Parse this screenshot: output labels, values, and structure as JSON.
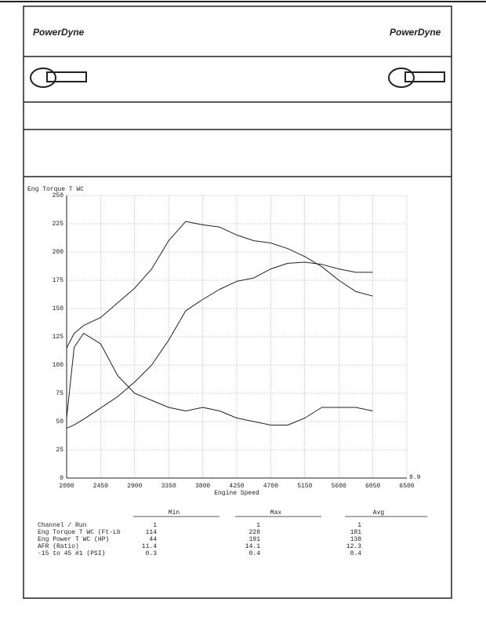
{
  "header": {
    "logo": "PowerDyne"
  },
  "chart_data": {
    "type": "line",
    "title": "Eng Torque T WC",
    "x_label": "Engine Speed",
    "x": [
      2000,
      2100,
      2225,
      2450,
      2675,
      2900,
      3125,
      3350,
      3575,
      3800,
      4025,
      4250,
      4475,
      4700,
      4925,
      5150,
      5375,
      5600,
      5825,
      6050
    ],
    "series": [
      {
        "name": "Eng Torque T WC",
        "color": "#222",
        "values": [
          115,
          128,
          135,
          142,
          155,
          168,
          185,
          210,
          227,
          224,
          222,
          215,
          210,
          208,
          203,
          196,
          187,
          175,
          165,
          161
        ]
      },
      {
        "name": "Eng Power T WC",
        "color": "#222",
        "values": [
          44,
          47,
          52,
          62,
          72,
          85,
          100,
          122,
          148,
          158,
          167,
          174,
          177,
          185,
          190,
          191,
          189,
          185,
          182,
          182
        ]
      },
      {
        "name": "AFR",
        "color": "#222",
        "axis": "y2",
        "values": [
          11.6,
          13.6,
          14.0,
          13.7,
          12.8,
          12.3,
          12.1,
          11.9,
          11.8,
          11.9,
          11.8,
          11.6,
          11.5,
          11.4,
          11.4,
          11.6,
          11.9,
          11.9,
          11.9,
          11.8
        ]
      }
    ],
    "xlim": [
      2000,
      6500
    ],
    "xticks": [
      2000,
      2450,
      2900,
      3350,
      3800,
      4250,
      4700,
      5150,
      5600,
      6050,
      6500
    ],
    "ylim": [
      0,
      250
    ],
    "yticks": [
      0,
      25,
      50,
      75,
      100,
      125,
      150,
      175,
      200,
      225,
      250
    ],
    "y2lim": [
      9.9,
      17.9
    ],
    "y2ticks": [
      9.9
    ],
    "grid": true
  },
  "table": {
    "header": [
      "Min",
      "Max",
      "Avg"
    ],
    "rows": [
      [
        "Channel / Run",
        "1",
        "1",
        "1"
      ],
      [
        "Eng Torque T WC (Ft-Lb",
        "114",
        "228",
        "181"
      ],
      [
        "Eng Power T WC (HP)",
        "44",
        "191",
        "138"
      ],
      [
        "AFR (Ratio)",
        "11.4",
        "14.1",
        "12.3"
      ],
      [
        "-15 to 45  #1 (PSI)",
        "0.3",
        "0.4",
        "0.4"
      ]
    ]
  }
}
